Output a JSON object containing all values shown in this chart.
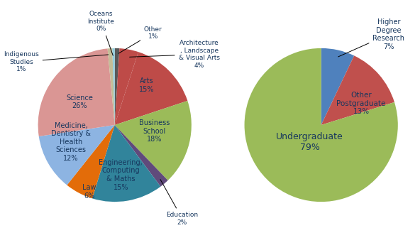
{
  "pie1_values": [
    1,
    4,
    15,
    18,
    2,
    15,
    6,
    12,
    26,
    1,
    0.5
  ],
  "pie1_colors": [
    "#595959",
    "#BE4B48",
    "#BE4B48",
    "#9BBB59",
    "#604A7B",
    "#31849B",
    "#E36C09",
    "#8DB4E2",
    "#DA9694",
    "#C4BD97",
    "#92CDDC"
  ],
  "pie2_values": [
    7,
    13,
    79
  ],
  "pie2_colors": [
    "#4F81BD",
    "#C0504D",
    "#9BBB59"
  ],
  "label_color": "#17375E",
  "bg_color": "#FFFFFF"
}
